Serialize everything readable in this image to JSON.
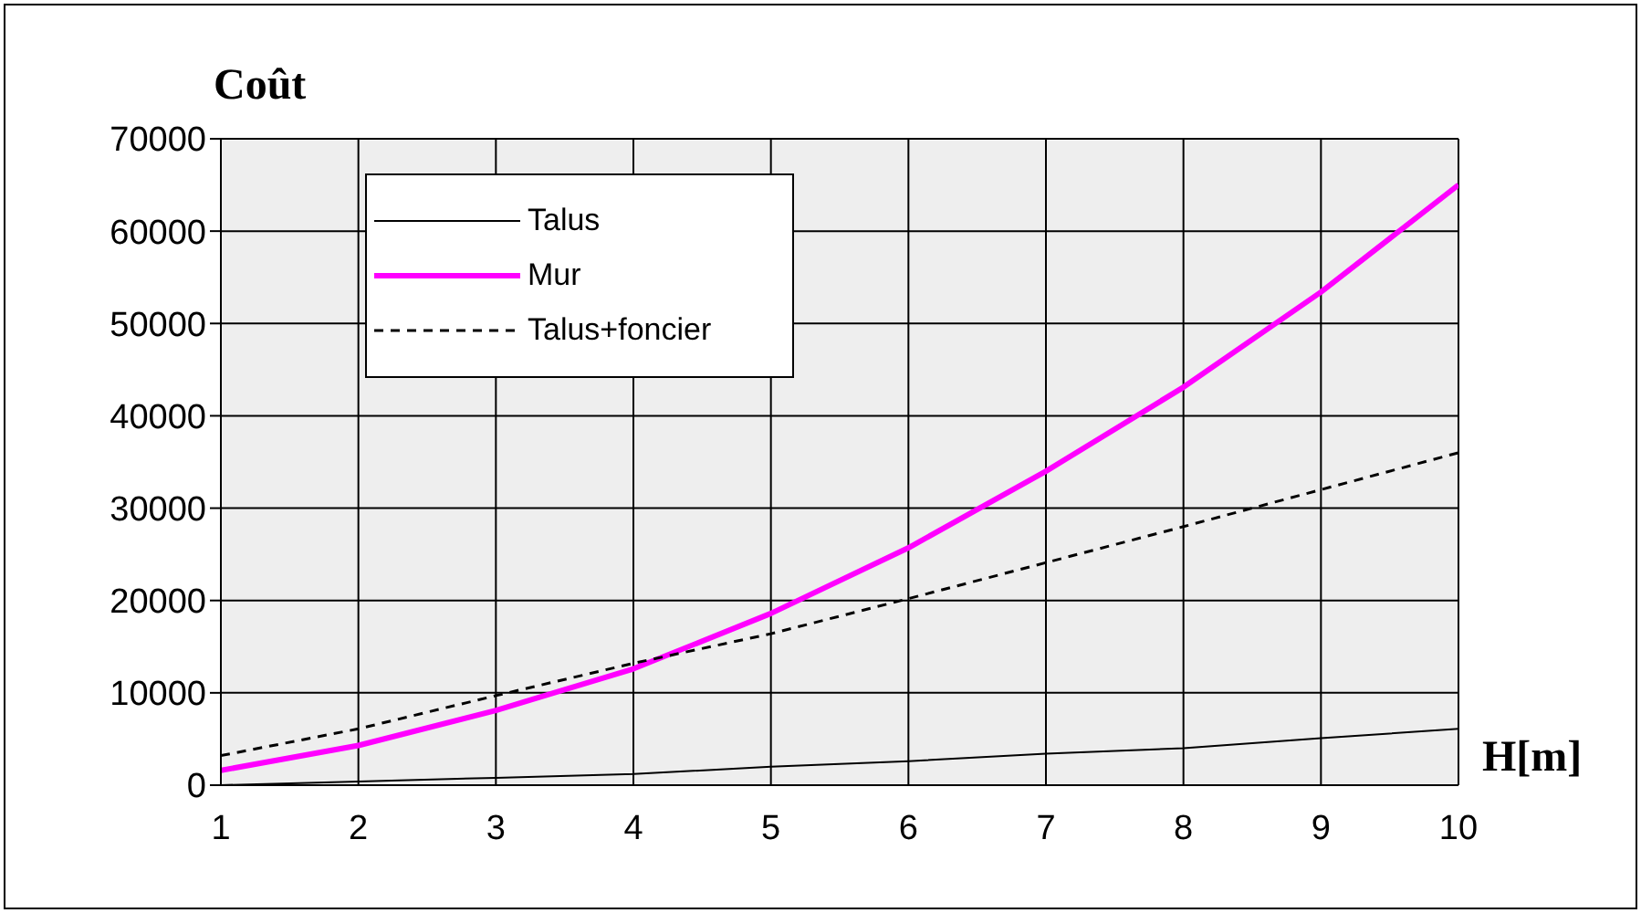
{
  "chart_data": {
    "type": "line",
    "ylabel": "Coût",
    "xlabel": "H[m]",
    "x": [
      1,
      2,
      3,
      4,
      5,
      6,
      7,
      8,
      9,
      10
    ],
    "series": [
      {
        "name": "Talus",
        "color": "#000000",
        "line_style": "solid",
        "values": [
          0,
          400,
          800,
          1200,
          2000,
          2600,
          3400,
          4000,
          5100,
          6100
        ]
      },
      {
        "name": "Mur",
        "color": "#ff00ff",
        "line_style": "solid",
        "values": [
          1600,
          4300,
          8100,
          12600,
          18600,
          25700,
          34000,
          43100,
          53400,
          65000
        ]
      },
      {
        "name": "Talus+foncier",
        "color": "#000000",
        "line_style": "dashed",
        "values": [
          3200,
          6100,
          9700,
          13200,
          16400,
          20200,
          24100,
          28000,
          32000,
          36000
        ]
      }
    ],
    "xlim": [
      1,
      10
    ],
    "xticks": [
      1,
      2,
      3,
      4,
      5,
      6,
      7,
      8,
      9,
      10
    ],
    "ylim": [
      0,
      70000
    ],
    "yticks": [
      0,
      10000,
      20000,
      30000,
      40000,
      50000,
      60000,
      70000
    ],
    "grid": true,
    "legend": "top left",
    "marker": "none"
  }
}
